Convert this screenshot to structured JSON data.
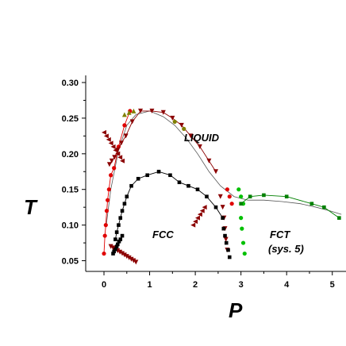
{
  "chart_data": {
    "type": "scatter",
    "title": "",
    "xlabel": "P",
    "ylabel": "T",
    "xlim": [
      -0.4,
      5.3
    ],
    "ylim": [
      0.035,
      0.31
    ],
    "xticks": [
      "0",
      "1",
      "2",
      "3",
      "4",
      "5"
    ],
    "yticks": [
      "0.05",
      "0.10",
      "0.15",
      "0.20",
      "0.25",
      "0.30"
    ],
    "annotations": [
      "LIQUID",
      "FCC",
      "FCT",
      "(sys. 5)"
    ],
    "colors": {
      "red": "#e00000",
      "maroon": "#8b0000",
      "olive": "#808000",
      "green": "#00c000",
      "darkgreen": "#008000",
      "black": "#000000",
      "gray": "#555555"
    },
    "series": [
      {
        "marker": "circle",
        "color": "#e00000",
        "line": true,
        "x": [
          0.0,
          0.02,
          0.04,
          0.06,
          0.08,
          0.11,
          0.15,
          0.22,
          0.32,
          0.45,
          0.57
        ],
        "y": [
          0.06,
          0.085,
          0.1,
          0.12,
          0.135,
          0.15,
          0.17,
          0.18,
          0.21,
          0.24,
          0.26
        ]
      },
      {
        "marker": "circle",
        "color": "#e00000",
        "line": false,
        "x": [
          2.7,
          2.75,
          2.8
        ],
        "y": [
          0.15,
          0.14,
          0.13
        ]
      },
      {
        "marker": "triangle-down",
        "color": "#8b0000",
        "line": true,
        "x": [
          0.12,
          0.17,
          0.23,
          0.3,
          0.38,
          0.48,
          0.62,
          0.8,
          1.05,
          1.3,
          1.5,
          1.7,
          1.9,
          2.1,
          2.3,
          2.45
        ],
        "y": [
          0.185,
          0.19,
          0.195,
          0.205,
          0.215,
          0.225,
          0.245,
          0.26,
          0.26,
          0.258,
          0.25,
          0.24,
          0.225,
          0.21,
          0.19,
          0.175
        ]
      },
      {
        "marker": "triangle-down",
        "color": "#8b0000",
        "line": false,
        "x": [
          2.55,
          2.6,
          2.63,
          2.65,
          2.67,
          2.7
        ],
        "y": [
          0.14,
          0.125,
          0.11,
          0.095,
          0.08,
          0.065
        ]
      },
      {
        "marker": "triangle-down",
        "color": "#8b0000",
        "line": false,
        "x": [
          0.15,
          0.2,
          0.25,
          0.3,
          0.35,
          0.4,
          0.45,
          0.5,
          0.55,
          0.6,
          0.65,
          0.7
        ],
        "y": [
          0.07,
          0.068,
          0.066,
          0.064,
          0.062,
          0.06,
          0.058,
          0.056,
          0.054,
          0.052,
          0.05,
          0.048
        ]
      },
      {
        "marker": "triangle-left",
        "color": "#8b0000",
        "line": false,
        "x": [
          0.0,
          0.05,
          0.1,
          0.15,
          0.2,
          0.25,
          0.3,
          0.35,
          0.4
        ],
        "y": [
          0.23,
          0.225,
          0.22,
          0.215,
          0.21,
          0.205,
          0.2,
          0.195,
          0.19
        ]
      },
      {
        "marker": "triangle-left",
        "color": "#8b0000",
        "line": false,
        "x": [
          1.95,
          2.0,
          2.05,
          2.1,
          2.15,
          2.2
        ],
        "y": [
          0.1,
          0.105,
          0.11,
          0.115,
          0.12,
          0.125
        ]
      },
      {
        "marker": "triangle-up",
        "color": "#808000",
        "line": false,
        "x": [
          0.45,
          0.55,
          0.65
        ],
        "y": [
          0.255,
          0.258,
          0.26
        ]
      },
      {
        "marker": "circle",
        "color": "#808000",
        "line": false,
        "x": [
          1.55,
          1.75
        ],
        "y": [
          0.245,
          0.235
        ]
      },
      {
        "marker": "square",
        "color": "#000000",
        "line": true,
        "x": [
          0.25,
          0.28,
          0.32,
          0.36,
          0.4,
          0.45,
          0.5,
          0.6,
          0.75,
          0.95,
          1.2,
          1.45,
          1.65,
          1.85,
          2.05,
          2.25,
          2.45,
          2.6
        ],
        "y": [
          0.08,
          0.09,
          0.1,
          0.11,
          0.12,
          0.13,
          0.14,
          0.155,
          0.165,
          0.17,
          0.175,
          0.17,
          0.16,
          0.155,
          0.15,
          0.14,
          0.125,
          0.11
        ]
      },
      {
        "marker": "square",
        "color": "#000000",
        "line": false,
        "x": [
          2.62,
          2.65,
          2.68,
          2.72,
          2.75
        ],
        "y": [
          0.095,
          0.085,
          0.075,
          0.065,
          0.055
        ]
      },
      {
        "marker": "square",
        "color": "#000000",
        "line": false,
        "x": [
          0.2,
          0.22,
          0.25,
          0.28,
          0.3,
          0.33,
          0.36,
          0.4
        ],
        "y": [
          0.06,
          0.063,
          0.066,
          0.07,
          0.073,
          0.077,
          0.08,
          0.085
        ]
      },
      {
        "marker": "circle",
        "color": "#00c000",
        "line": false,
        "x": [
          2.95,
          3.0,
          3.05,
          3.0,
          3.02,
          3.05,
          3.08
        ],
        "y": [
          0.15,
          0.14,
          0.13,
          0.11,
          0.095,
          0.075,
          0.06
        ]
      },
      {
        "marker": "square",
        "color": "#008000",
        "line": true,
        "x": [
          3.0,
          3.2,
          3.5,
          4.0,
          4.55,
          4.82,
          5.15
        ],
        "y": [
          0.13,
          0.14,
          0.142,
          0.14,
          0.13,
          0.125,
          0.11
        ]
      }
    ],
    "guide_lines": [
      {
        "color": "#555555",
        "x": [
          0.05,
          0.15,
          0.32,
          0.5,
          0.7,
          1.0,
          1.3,
          1.55,
          1.8,
          2.05,
          2.3,
          2.55,
          2.85,
          3.15,
          3.5,
          3.9,
          4.3,
          4.65,
          4.95,
          5.2
        ],
        "y": [
          0.1,
          0.15,
          0.205,
          0.24,
          0.255,
          0.26,
          0.252,
          0.24,
          0.222,
          0.2,
          0.175,
          0.155,
          0.14,
          0.135,
          0.135,
          0.133,
          0.13,
          0.125,
          0.12,
          0.115
        ]
      }
    ]
  }
}
